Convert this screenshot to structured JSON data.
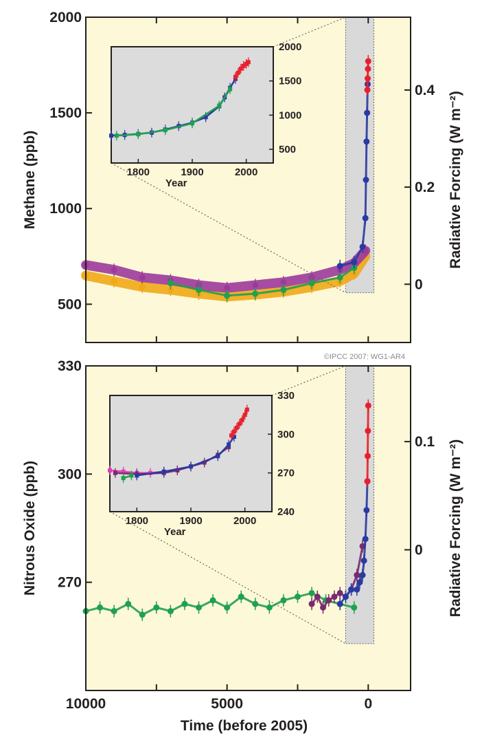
{
  "credit": "©IPCC 2007: WG1-AR4",
  "colors": {
    "panel_bg": "#fdf8d8",
    "inset_bg": "#dcdcdc",
    "highlight_bg": "#d9d9d9",
    "orange": "#f0a818",
    "purple": "#9c3a9c",
    "green": "#20a050",
    "blue": "#2a3aa0",
    "red": "#e8202e",
    "dark_purple": "#7a2a6e",
    "pink": "#e040b0"
  },
  "chart_data": [
    {
      "type": "scatter",
      "title": "",
      "ylabel": "Methane (ppb)",
      "y2label": "Radiative Forcing (W m⁻²)",
      "xlabel": "",
      "xlim": [
        10000,
        -1500
      ],
      "ylim": [
        300,
        2000
      ],
      "y2lim": [
        -0.12,
        0.55
      ],
      "y_ticks": [
        500,
        1000,
        1500,
        2000
      ],
      "y_tick_labels": [
        "500",
        "1000",
        "1500",
        "2000"
      ],
      "y2_ticks": [
        0,
        0.2,
        0.4
      ],
      "y2_tick_labels": [
        "0",
        "0.2",
        "0.4"
      ],
      "highlight_range": {
        "x": [
          800,
          -200
        ],
        "y": [
          560,
          2000
        ]
      },
      "series": [
        {
          "color": "orange",
          "x": [
            10000,
            9000,
            8000,
            7000,
            6000,
            5000,
            4000,
            3000,
            2000,
            1000,
            500,
            100
          ],
          "values": [
            650,
            620,
            590,
            575,
            555,
            540,
            550,
            565,
            590,
            620,
            660,
            750
          ]
        },
        {
          "color": "purple",
          "x": [
            10000,
            9000,
            8000,
            7000,
            6000,
            5000,
            4000,
            3000,
            2000,
            1000,
            500,
            100
          ],
          "values": [
            705,
            680,
            640,
            625,
            600,
            585,
            600,
            615,
            640,
            680,
            715,
            780
          ]
        },
        {
          "color": "green",
          "x": [
            7000,
            6000,
            5000,
            4000,
            3000,
            2000,
            1000,
            500
          ],
          "values": [
            610,
            575,
            545,
            555,
            575,
            610,
            640,
            690
          ]
        },
        {
          "color": "blue",
          "x": [
            1000,
            500,
            200,
            100,
            80,
            60,
            40,
            20
          ],
          "values": [
            700,
            720,
            800,
            950,
            1150,
            1350,
            1500,
            1650
          ]
        },
        {
          "color": "red",
          "x": [
            30,
            20,
            10,
            0
          ],
          "values": [
            1620,
            1680,
            1730,
            1770
          ]
        }
      ],
      "inset": {
        "xlabel": "Year",
        "xlim": [
          1750,
          2050
        ],
        "ylim": [
          300,
          2000
        ],
        "x_ticks": [
          1800,
          1900,
          2000
        ],
        "x_tick_labels": [
          "1800",
          "1900",
          "2000"
        ],
        "y_ticks": [
          500,
          1000,
          1500,
          2000
        ],
        "y_tick_labels": [
          "500",
          "1000",
          "1500",
          "2000"
        ],
        "series": [
          {
            "color": "blue",
            "x": [
              1750,
              1775,
              1800,
              1825,
              1850,
              1875,
              1900,
              1925,
              1950,
              1960,
              1970,
              1980
            ],
            "values": [
              700,
              710,
              725,
              745,
              790,
              840,
              890,
              970,
              1130,
              1260,
              1400,
              1530
            ]
          },
          {
            "color": "green",
            "x": [
              1760,
              1800,
              1850,
              1900,
              1950,
              1970
            ],
            "values": [
              700,
              720,
              780,
              880,
              1140,
              1380
            ]
          },
          {
            "color": "red",
            "x": [
              1980,
              1985,
              1990,
              1995,
              2000,
              2004
            ],
            "values": [
              1560,
              1620,
              1680,
              1720,
              1750,
              1775
            ]
          }
        ]
      }
    },
    {
      "type": "scatter",
      "title": "",
      "ylabel": "Nitrous Oxide (ppb)",
      "y2label": "Radiative Forcing (W m⁻²)",
      "xlabel": "Time (before 2005)",
      "xlim": [
        10000,
        -1500
      ],
      "ylim": [
        240,
        330
      ],
      "y2lim": [
        -0.13,
        0.17
      ],
      "x_ticks": [
        10000,
        5000,
        0
      ],
      "x_tick_labels": [
        "10000",
        "5000",
        "0"
      ],
      "y_ticks": [
        270,
        300,
        330
      ],
      "y_tick_labels": [
        "270",
        "300",
        "330"
      ],
      "y2_ticks": [
        0,
        0.1
      ],
      "y2_tick_labels": [
        "0",
        "0.1"
      ],
      "highlight_range": {
        "x": [
          800,
          -200
        ],
        "y": [
          253,
          330
        ]
      },
      "series": [
        {
          "color": "green",
          "x": [
            10000,
            9500,
            9000,
            8500,
            8000,
            7500,
            7000,
            6500,
            6000,
            5500,
            5000,
            4500,
            4000,
            3500,
            3000,
            2500,
            2000,
            1500,
            1000,
            500
          ],
          "values": [
            262,
            263,
            262,
            264,
            261,
            263,
            262,
            264,
            263,
            265,
            263,
            266,
            264,
            263,
            265,
            266,
            267,
            265,
            264,
            263
          ]
        },
        {
          "color": "dark_purple",
          "x": [
            2000,
            1800,
            1600,
            1400,
            1200,
            1000,
            800,
            600,
            400,
            200
          ],
          "values": [
            264,
            266,
            263,
            265,
            266,
            267,
            266,
            268,
            272,
            280
          ]
        },
        {
          "color": "blue",
          "x": [
            1000,
            800,
            600,
            400,
            300,
            200,
            150,
            100,
            60,
            30
          ],
          "values": [
            264,
            266,
            268,
            268,
            270,
            272,
            276,
            282,
            290,
            298
          ]
        },
        {
          "color": "red",
          "x": [
            30,
            20,
            10,
            0
          ],
          "values": [
            298,
            305,
            312,
            319
          ]
        }
      ],
      "inset": {
        "xlabel": "Year",
        "xlim": [
          1750,
          2050
        ],
        "ylim": [
          240,
          330
        ],
        "x_ticks": [
          1800,
          1900,
          2000
        ],
        "x_tick_labels": [
          "1800",
          "1900",
          "2000"
        ],
        "y_ticks": [
          240,
          270,
          300,
          330
        ],
        "y_tick_labels": [
          "240",
          "270",
          "300",
          "330"
        ],
        "series": [
          {
            "color": "pink",
            "x": [
              1750,
              1775,
              1800,
              1825,
              1850,
              1875
            ],
            "values": [
              272,
              271,
              270,
              270,
              271,
              272
            ]
          },
          {
            "color": "dark_purple",
            "x": [
              1760,
              1800,
              1850,
              1875,
              1900,
              1925,
              1950,
              1970
            ],
            "values": [
              270,
              269,
              270,
              272,
              275,
              278,
              284,
              290
            ]
          },
          {
            "color": "blue",
            "x": [
              1800,
              1850,
              1900,
              1950,
              1970,
              1980
            ],
            "values": [
              268,
              271,
              275,
              283,
              292,
              298
            ]
          },
          {
            "color": "green",
            "x": [
              1775,
              1790
            ],
            "values": [
              266,
              268
            ]
          },
          {
            "color": "red",
            "x": [
              1975,
              1980,
              1985,
              1990,
              1995,
              2000,
              2004
            ],
            "values": [
              299,
              302,
              305,
              308,
              311,
              315,
              319
            ]
          }
        ]
      }
    }
  ]
}
